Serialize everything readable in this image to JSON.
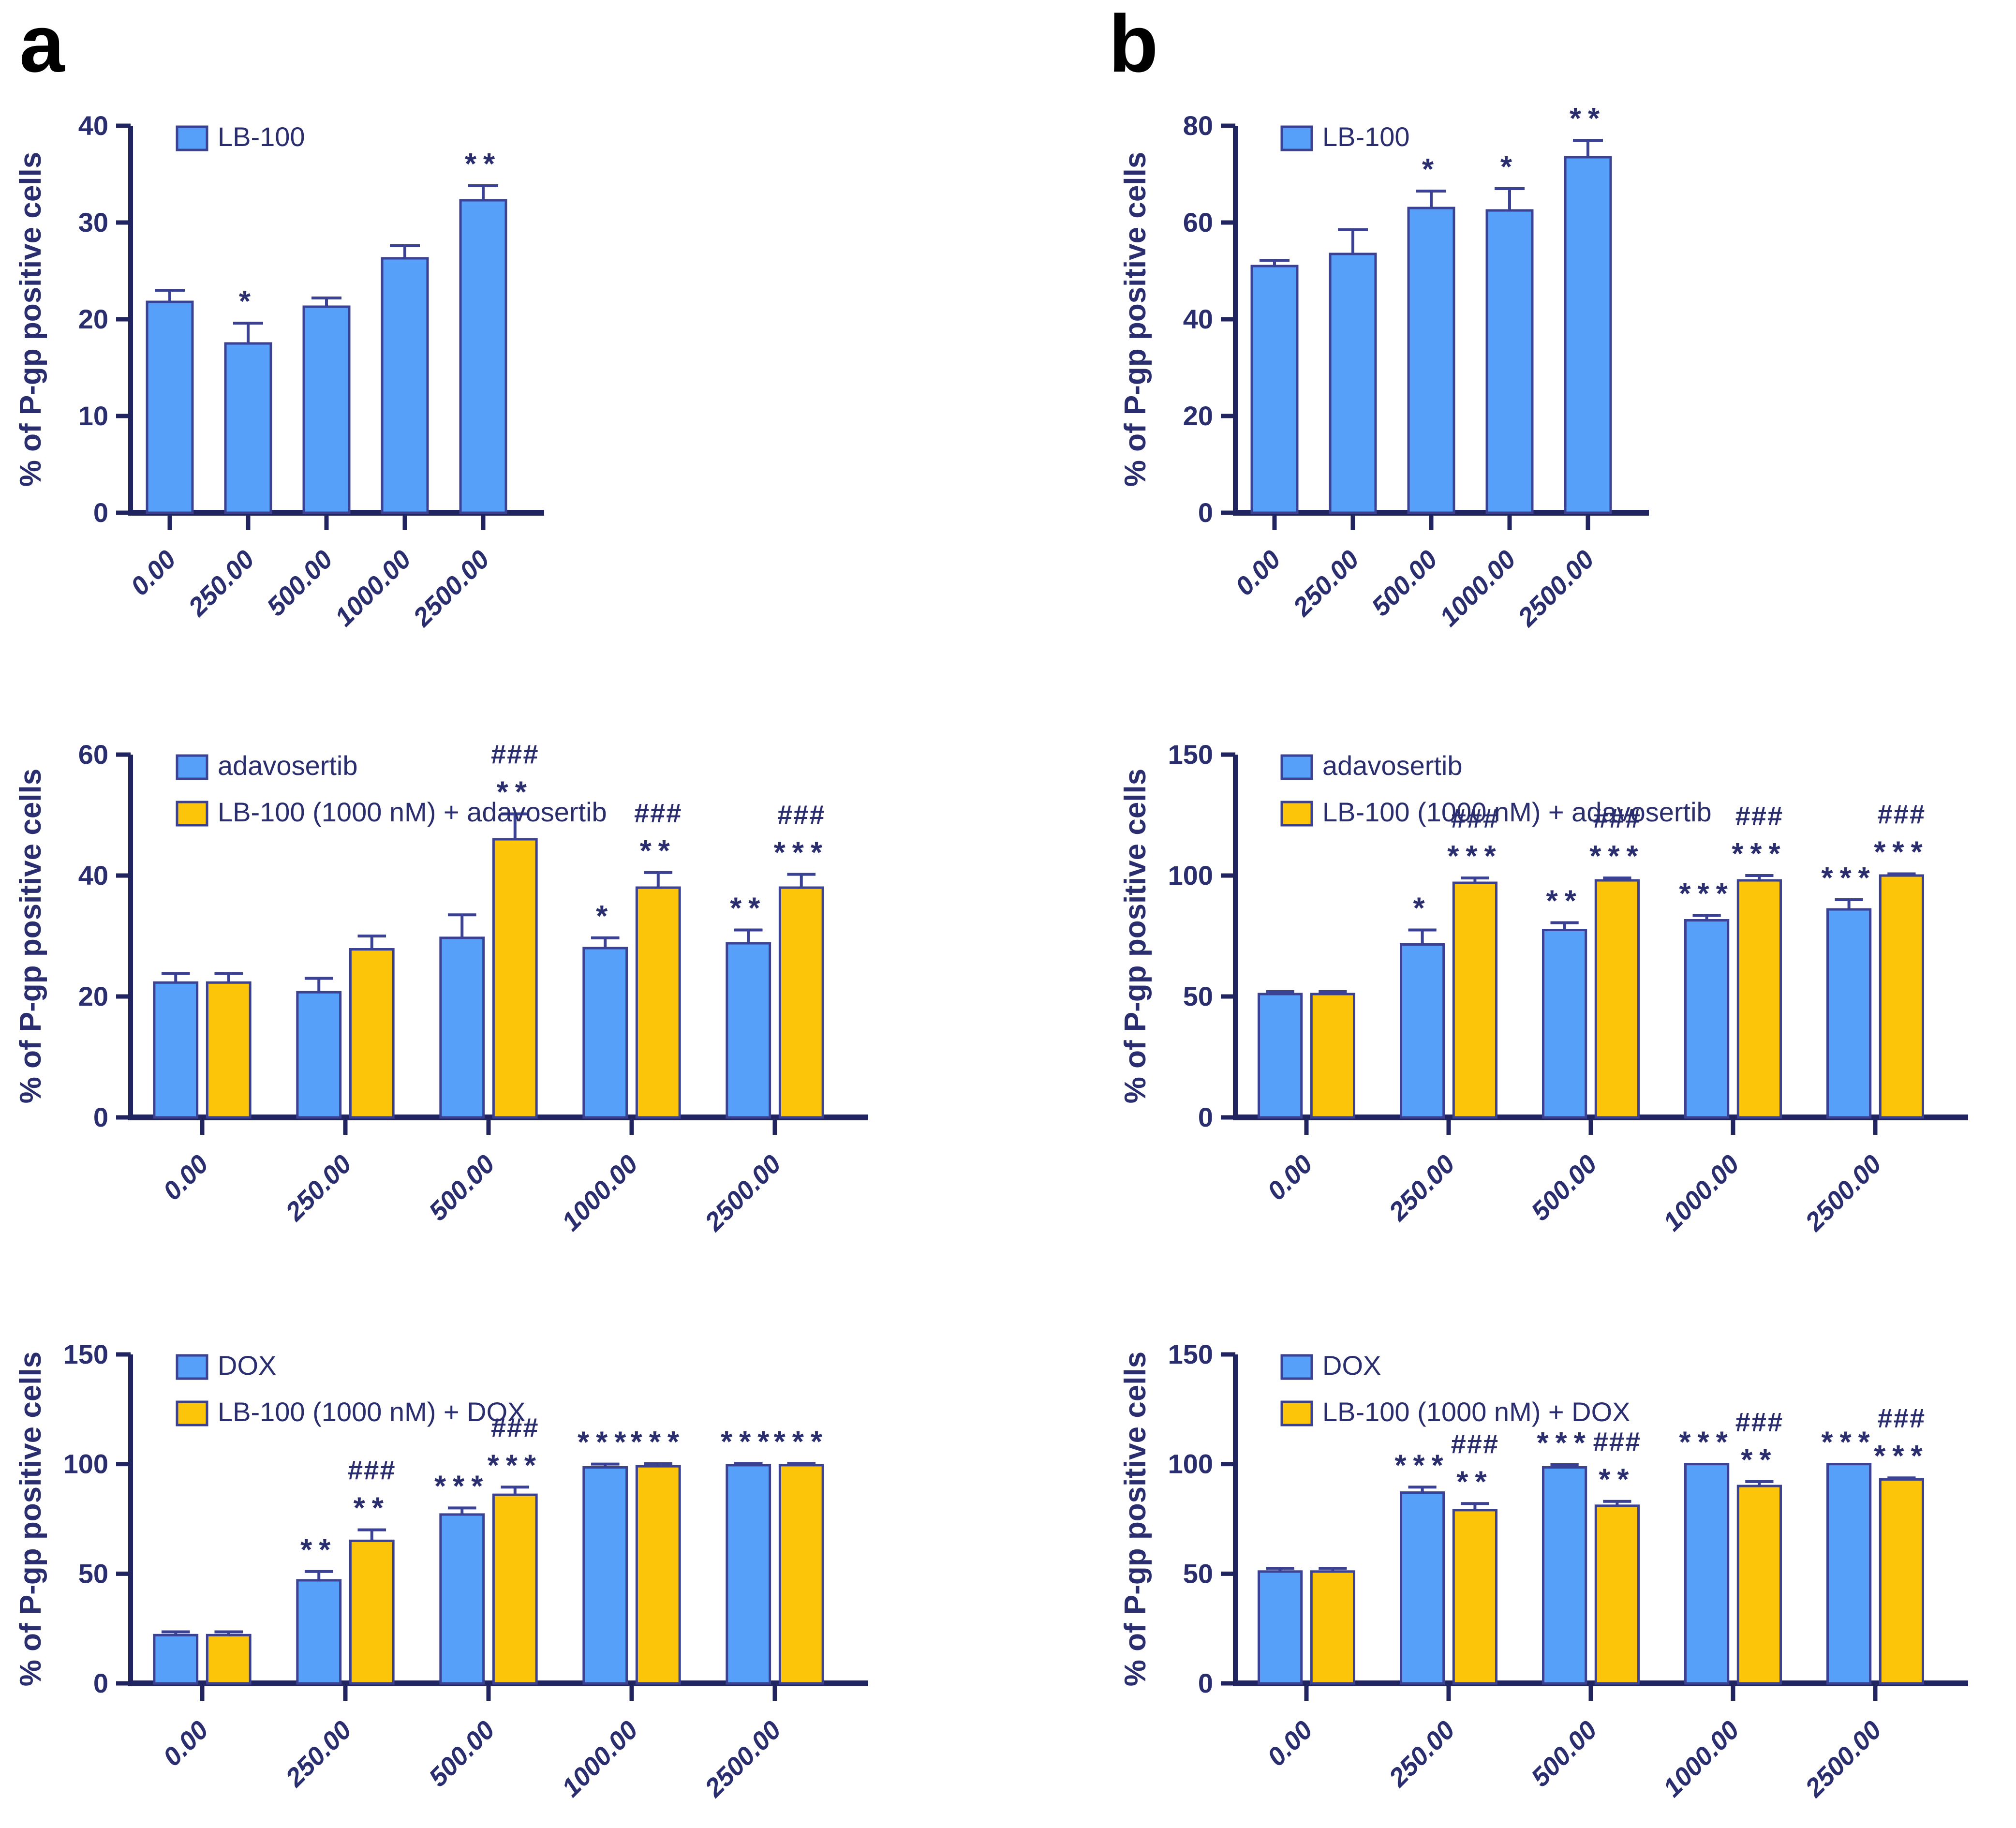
{
  "figure": {
    "panels": [
      {
        "label": "a"
      },
      {
        "label": "b"
      }
    ],
    "colors": {
      "bar_blue": "#57A0FA",
      "bar_yellow": "#FCC50A",
      "bar_outline": "#3B4193",
      "axis": "#20245F",
      "text": "#2A2E6E",
      "panel_letter": "#000000",
      "background": "#FFFFFF"
    }
  },
  "chart_data": [
    {
      "id": "a-lb100",
      "panel": "a",
      "type": "bar",
      "ylabel": "% of P-gp positive cells",
      "xlabel": "",
      "ylim": [
        0,
        40
      ],
      "yticks": [
        0,
        10,
        20,
        30,
        40
      ],
      "grid": false,
      "legend_position": "top-left-inside",
      "categories": [
        "0.00",
        "250.00",
        "500.00",
        "1000.00",
        "2500.00"
      ],
      "series": [
        {
          "name": "LB-100",
          "color": "blue",
          "values": [
            21.8,
            17.5,
            21.3,
            26.3,
            32.3
          ],
          "errors": [
            1.2,
            2.1,
            0.9,
            1.3,
            1.5
          ],
          "stars": [
            "",
            "*",
            "",
            "",
            "**"
          ],
          "hashes": [
            "",
            "",
            "",
            "",
            ""
          ]
        }
      ]
    },
    {
      "id": "b-lb100",
      "panel": "b",
      "type": "bar",
      "ylabel": "% of P-gp positive cells",
      "xlabel": "",
      "ylim": [
        0,
        80
      ],
      "yticks": [
        0,
        20,
        40,
        60,
        80
      ],
      "grid": false,
      "legend_position": "top-left-inside",
      "categories": [
        "0.00",
        "250.00",
        "500.00",
        "1000.00",
        "2500.00"
      ],
      "series": [
        {
          "name": "LB-100",
          "color": "blue",
          "values": [
            51,
            53.5,
            63,
            62.5,
            73.5
          ],
          "errors": [
            1.2,
            5,
            3.5,
            4.5,
            3.5
          ],
          "stars": [
            "",
            "",
            "*",
            "*",
            "**"
          ],
          "hashes": [
            "",
            "",
            "",
            "",
            ""
          ]
        }
      ]
    },
    {
      "id": "a-adavosertib",
      "panel": "a",
      "type": "bar",
      "ylabel": "% of P-gp positive cells",
      "xlabel": "",
      "ylim": [
        0,
        60
      ],
      "yticks": [
        0,
        20,
        40,
        60
      ],
      "grid": false,
      "legend_position": "top-left-inside",
      "categories": [
        "0.00",
        "250.00",
        "500.00",
        "1000.00",
        "2500.00"
      ],
      "series": [
        {
          "name": "adavosertib",
          "color": "blue",
          "values": [
            22.3,
            20.7,
            29.7,
            28,
            28.8
          ],
          "errors": [
            1.5,
            2.3,
            3.8,
            1.7,
            2.2
          ],
          "stars": [
            "",
            "",
            "",
            "*",
            "**"
          ],
          "hashes": [
            "",
            "",
            "",
            "",
            ""
          ]
        },
        {
          "name": "LB-100 (1000 nM) + adavosertib",
          "color": "yellow",
          "values": [
            22.3,
            27.8,
            46,
            38,
            38
          ],
          "errors": [
            1.5,
            2.2,
            4.2,
            2.5,
            2.2
          ],
          "stars": [
            "",
            "",
            "**",
            "**",
            "***"
          ],
          "hashes": [
            "",
            "",
            "###",
            "###",
            "###"
          ]
        }
      ]
    },
    {
      "id": "b-adavosertib",
      "panel": "b",
      "type": "bar",
      "ylabel": "% of P-gp positive cells",
      "xlabel": "",
      "ylim": [
        0,
        150
      ],
      "yticks": [
        0,
        50,
        100,
        150
      ],
      "grid": false,
      "legend_position": "top-left-inside",
      "categories": [
        "0.00",
        "250.00",
        "500.00",
        "1000.00",
        "2500.00"
      ],
      "series": [
        {
          "name": "adavosertib",
          "color": "blue",
          "values": [
            51,
            71.5,
            77.5,
            81.5,
            86
          ],
          "errors": [
            1,
            6,
            3,
            2,
            4
          ],
          "stars": [
            "",
            "*",
            "**",
            "***",
            "***"
          ],
          "hashes": [
            "",
            "",
            "",
            "",
            ""
          ]
        },
        {
          "name": "LB-100 (1000 nM) + adavosertib",
          "color": "yellow",
          "values": [
            51,
            97,
            98,
            98,
            100
          ],
          "errors": [
            1,
            2,
            1,
            2,
            0.7
          ],
          "stars": [
            "",
            "***",
            "***",
            "***",
            "***"
          ],
          "hashes": [
            "",
            "###",
            "###",
            "###",
            "###"
          ]
        }
      ]
    },
    {
      "id": "a-dox",
      "panel": "a",
      "type": "bar",
      "ylabel": "% of P-gp positive cells",
      "xlabel": "",
      "ylim": [
        0,
        150
      ],
      "yticks": [
        0,
        50,
        100,
        150
      ],
      "grid": false,
      "legend_position": "top-left-inside",
      "categories": [
        "0.00",
        "250.00",
        "500.00",
        "1000.00",
        "2500.00"
      ],
      "series": [
        {
          "name": "DOX",
          "color": "blue",
          "values": [
            22,
            47,
            77,
            98.5,
            99.5
          ],
          "errors": [
            1.5,
            4,
            3,
            1.5,
            0.8
          ],
          "stars": [
            "",
            "**",
            "***",
            "***",
            "***"
          ],
          "hashes": [
            "",
            "",
            "",
            "",
            ""
          ]
        },
        {
          "name": "LB-100 (1000 nM) + DOX",
          "color": "yellow",
          "values": [
            22,
            65,
            86,
            99,
            99.5
          ],
          "errors": [
            1.5,
            5,
            3.5,
            1.2,
            0.8
          ],
          "stars": [
            "",
            "**",
            "***",
            "***",
            "***"
          ],
          "hashes": [
            "",
            "###",
            "###",
            "",
            ""
          ]
        }
      ]
    },
    {
      "id": "b-dox",
      "panel": "b",
      "type": "bar",
      "ylabel": "% of P-gp positive cells",
      "xlabel": "",
      "ylim": [
        0,
        150
      ],
      "yticks": [
        0,
        50,
        100,
        150
      ],
      "grid": false,
      "legend_position": "top-left-inside",
      "categories": [
        "0.00",
        "250.00",
        "500.00",
        "1000.00",
        "2500.00"
      ],
      "series": [
        {
          "name": "DOX",
          "color": "blue",
          "values": [
            51,
            87,
            98.5,
            100,
            100
          ],
          "errors": [
            1.5,
            2.5,
            1.2,
            0,
            0
          ],
          "stars": [
            "",
            "***",
            "***",
            "***",
            "***"
          ],
          "hashes": [
            "",
            "",
            "",
            "",
            ""
          ]
        },
        {
          "name": "LB-100 (1000 nM) + DOX",
          "color": "yellow",
          "values": [
            51,
            79,
            81,
            90,
            93
          ],
          "errors": [
            1.5,
            3,
            2,
            2,
            0.7
          ],
          "stars": [
            "",
            "**",
            "**",
            "**",
            "***"
          ],
          "hashes": [
            "",
            "###",
            "###",
            "###",
            "###"
          ]
        }
      ]
    }
  ]
}
